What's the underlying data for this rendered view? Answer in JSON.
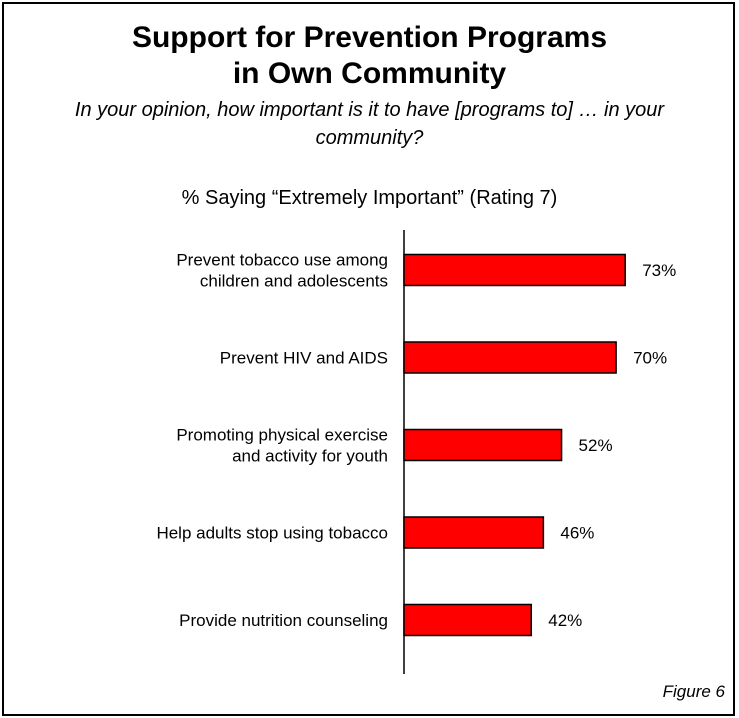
{
  "chart_data": {
    "type": "bar",
    "orientation": "horizontal",
    "title": "Support for Prevention Programs\nin Own Community",
    "question": "In your opinion, how important is it to have [programs to] … in your community?",
    "subtitle": "% Saying “Extremely Important” (Rating 7)",
    "figure_label": "Figure 6",
    "categories": [
      [
        "Prevent tobacco use among",
        "children and adolescents"
      ],
      [
        "Prevent HIV and AIDS"
      ],
      [
        "Promoting physical exercise",
        "and activity for youth"
      ],
      [
        "Help adults stop using tobacco"
      ],
      [
        "Provide nutrition counseling"
      ]
    ],
    "values": [
      73,
      70,
      52,
      46,
      42
    ],
    "value_labels": [
      "73%",
      "70%",
      "52%",
      "46%",
      "42%"
    ],
    "xlim": [
      0,
      100
    ],
    "bar_color": "#ff0000",
    "grid": false,
    "legend": "none"
  }
}
